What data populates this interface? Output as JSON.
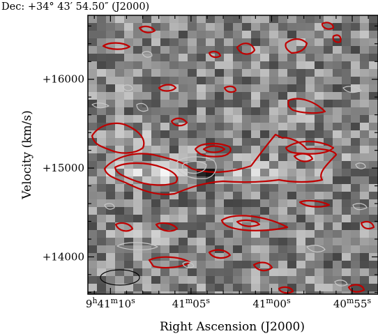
{
  "chart_data": {
    "type": "heatmap",
    "title": "Dec: +34° 43′ 54.50″ (J2000)",
    "xlabel": "Right Ascension (J2000)",
    "ylabel": "Velocity (km/s)",
    "x_ticks": [
      {
        "h": "9",
        "hs": "h",
        "m": "41",
        "ms": "m",
        "s": "10",
        "ss": "s",
        "ra_seconds": 70
      },
      {
        "m": "41",
        "ms": "m",
        "s": "05",
        "ss": "s",
        "ra_seconds": 65
      },
      {
        "m": "41",
        "ms": "m",
        "s": "00",
        "ss": "s",
        "ra_seconds": 60
      },
      {
        "m": "40",
        "ms": "m",
        "s": "55",
        "ss": "s",
        "ra_seconds": 55
      }
    ],
    "y_ticks": [
      {
        "label": "+14000",
        "value": 14000
      },
      {
        "label": "+15000",
        "value": 15000
      },
      {
        "label": "+16000",
        "value": 16000
      }
    ],
    "ra_lim_seconds": [
      71.4,
      53.4
    ],
    "velocity_lim": [
      13580,
      16720
    ],
    "colormap": "greyscale (white = high, black = low)",
    "contours": {
      "positive_color": "#c00000",
      "negative_color": "#c8c8c8",
      "source_velocity": 14960,
      "source_ra_seconds": 64.0
    },
    "beam": {
      "shape": "ellipse",
      "position": "bottom-left"
    },
    "colors": {
      "frame": "#000000",
      "positive": "#c00000",
      "negative": "#c8c8c8"
    }
  }
}
